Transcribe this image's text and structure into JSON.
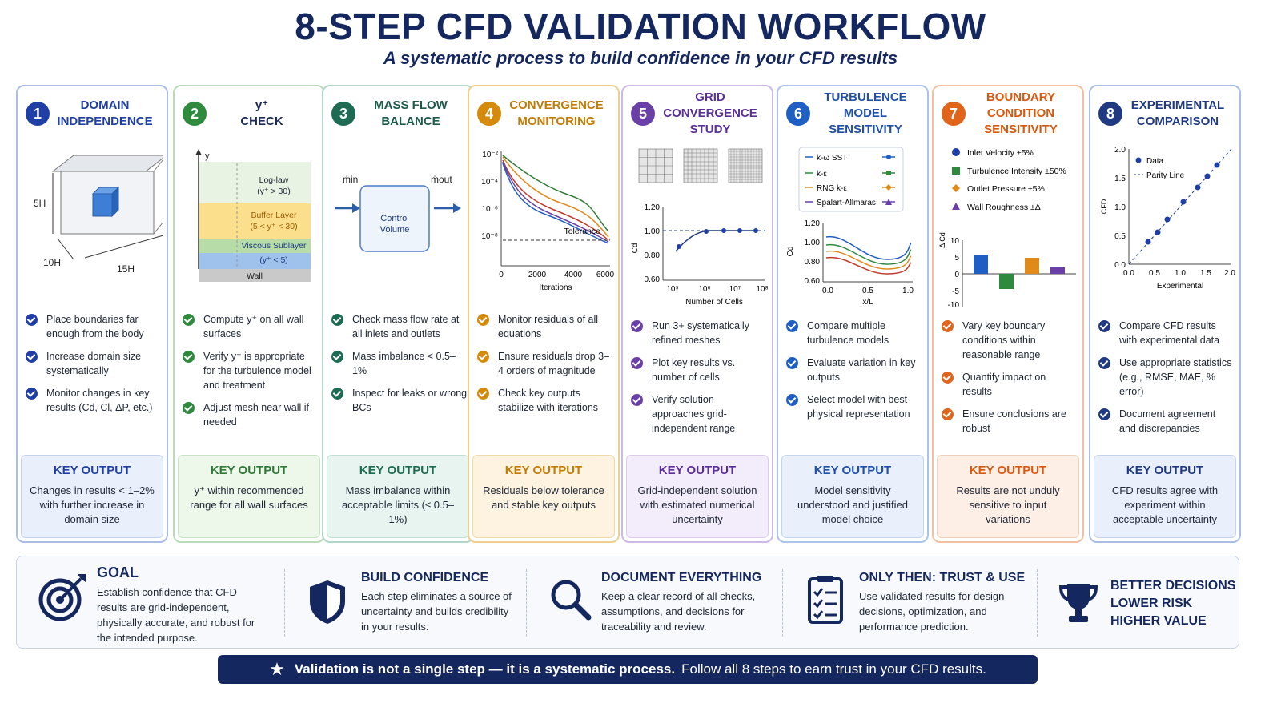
{
  "header": {
    "title": "8-STEP CFD VALIDATION WORKFLOW",
    "subtitle": "A systematic process to build confidence in your CFD results"
  },
  "colors": {
    "navy": "#14275e",
    "step1": "#1f3fa6",
    "step2": "#2e8b3e",
    "step3": "#1d6b52",
    "step4": "#d48a0a",
    "step5": "#6a3fa8",
    "step6": "#1f5fc4",
    "step7": "#e0651a",
    "step8": "#1f3a80"
  },
  "steps": [
    {
      "number": "1",
      "title_line1": "DOMAIN",
      "title_line2": "INDEPENDENCE",
      "figure": {
        "label_height": "5H",
        "label_depth": "10H",
        "label_length": "15H"
      },
      "bullets": [
        "Place boundaries far enough from the body",
        "Increase domain size systematically",
        "Monitor changes in key results (Cd, Cl, ΔP, etc.)"
      ],
      "key_title": "KEY OUTPUT",
      "key_text": "Changes in results < 1–2% with further increase in domain size"
    },
    {
      "number": "2",
      "title_line1": "y⁺",
      "title_line2": "CHECK",
      "figure": {
        "axis": "y",
        "loglaw": "Log-law",
        "loglaw_range": "(y⁺ > 30)",
        "buffer": "Buffer Layer",
        "buffer_range": "(5 < y⁺ < 30)",
        "viscous": "Viscous Sublayer",
        "viscous_range": "(y⁺ < 5)",
        "wall": "Wall"
      },
      "bullets": [
        "Compute y⁺ on all wall surfaces",
        "Verify y⁺ is appropriate for the turbulence model and treatment",
        "Adjust mesh near wall if needed"
      ],
      "key_title": "KEY OUTPUT",
      "key_text": "y⁺ within recommended range for all wall surfaces"
    },
    {
      "number": "3",
      "title_line1": "MASS FLOW",
      "title_line2": "BALANCE",
      "figure": {
        "in": "ṁin",
        "out": "ṁout",
        "cv1": "Control",
        "cv2": "Volume"
      },
      "bullets": [
        "Check mass flow rate at all inlets and outlets",
        "Mass imbalance < 0.5–1%",
        "Inspect for leaks or wrong BCs"
      ],
      "key_title": "KEY OUTPUT",
      "key_text": "Mass imbalance within acceptable limits (≤ 0.5–1%)"
    },
    {
      "number": "4",
      "title_line1": "CONVERGENCE",
      "title_line2": "MONITORING",
      "figure": {
        "y_ticks": [
          "10⁻²",
          "10⁻⁴",
          "10⁻⁶",
          "10⁻⁸"
        ],
        "x_ticks": [
          "0",
          "2000",
          "4000",
          "6000"
        ],
        "xlabel": "Iterations",
        "tolerance": "Tolerance"
      },
      "bullets": [
        "Monitor residuals of all equations",
        "Ensure residuals drop 3–4 orders of magnitude",
        "Check key outputs stabilize with iterations"
      ],
      "key_title": "KEY OUTPUT",
      "key_text": "Residuals below tolerance and stable key outputs"
    },
    {
      "number": "5",
      "title_line1": "GRID CONVERGENCE",
      "title_line2": "STUDY",
      "figure": {
        "y_ticks": [
          "1.20",
          "1.00",
          "0.80",
          "0.60"
        ],
        "x_ticks": [
          "10⁵",
          "10⁶",
          "10⁷",
          "10⁸"
        ],
        "ylabel": "Cd",
        "xlabel": "Number of Cells"
      },
      "bullets": [
        "Run 3+ systematically refined meshes",
        "Plot key results vs. number of cells",
        "Verify solution approaches grid-independent range"
      ],
      "key_title": "KEY OUTPUT",
      "key_text": "Grid-independent solution with estimated numerical uncertainty"
    },
    {
      "number": "6",
      "title_line1": "TURBULENCE MODEL",
      "title_line2": "SENSITIVITY",
      "figure": {
        "legend": [
          "k-ω SST",
          "k-ε",
          "RNG k-ε",
          "Spalart-Allmaras"
        ],
        "y_ticks": [
          "1.20",
          "1.00",
          "0.80",
          "0.60"
        ],
        "x_ticks": [
          "0.0",
          "0.5",
          "1.0"
        ],
        "ylabel": "Cd",
        "xlabel": "x/L"
      },
      "bullets": [
        "Compare multiple turbulence models",
        "Evaluate variation in key outputs",
        "Select model with best physical representation"
      ],
      "key_title": "KEY OUTPUT",
      "key_text": "Model sensitivity understood and justified model choice"
    },
    {
      "number": "7",
      "title_line1": "BOUNDARY CONDITION",
      "title_line2": "SENSITIVITY",
      "figure": {
        "legend": [
          "Inlet Velocity ±5%",
          "Turbulence Intensity ±50%",
          "Outlet Pressure ±5%",
          "Wall Roughness ±Δ"
        ],
        "y_ticks": [
          "10",
          "5",
          "0",
          "-5",
          "-10"
        ],
        "ylabel": "Δ Cd"
      },
      "bullets": [
        "Vary key boundary conditions within reasonable range",
        "Quantify impact on results",
        "Ensure conclusions are robust"
      ],
      "key_title": "KEY OUTPUT",
      "key_text": "Results are not unduly sensitive to input variations"
    },
    {
      "number": "8",
      "title_line1": "EXPERIMENTAL",
      "title_line2": "COMPARISON",
      "figure": {
        "legend": [
          "Data",
          "Parity Line"
        ],
        "y_ticks": [
          "2.0",
          "1.5",
          "1.0",
          "0.5",
          "0.0"
        ],
        "x_ticks": [
          "0.0",
          "0.5",
          "1.0",
          "1.5",
          "2.0"
        ],
        "ylabel": "CFD",
        "xlabel": "Experimental"
      },
      "bullets": [
        "Compare CFD results with experimental data",
        "Use appropriate statistics (e.g., RMSE, MAE, % error)",
        "Document agreement and discrepancies"
      ],
      "key_title": "KEY OUTPUT",
      "key_text": "CFD results agree with experiment within acceptable uncertainty"
    }
  ],
  "bottom": {
    "goal_title": "GOAL",
    "goal_text": "Establish confidence that CFD results are grid-independent, physically accurate, and robust for the intended purpose.",
    "build_title": "BUILD CONFIDENCE",
    "build_text": "Each step eliminates a source of uncertainty and builds credibility in your results.",
    "doc_title": "DOCUMENT EVERYTHING",
    "doc_text": "Keep a clear record of all checks, assumptions, and decisions for traceability and review.",
    "trust_title": "ONLY THEN: TRUST & USE",
    "trust_text": "Use validated results for design decisions, optimization, and performance prediction.",
    "better_line1": "BETTER DECISIONS",
    "better_line2": "LOWER RISK",
    "better_line3": "HIGHER VALUE"
  },
  "banner": {
    "bold": "Validation is not a single step — it is a systematic process.",
    "rest": "Follow all 8 steps to earn trust in your CFD results."
  }
}
